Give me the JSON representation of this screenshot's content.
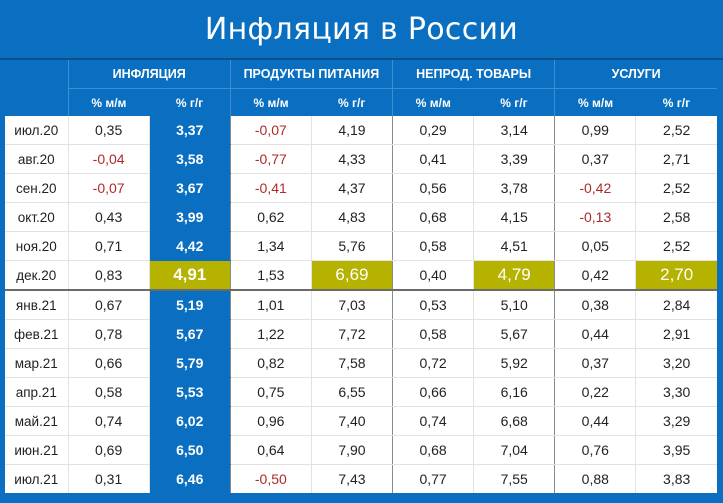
{
  "title": "Инфляция в России",
  "colors": {
    "brand_blue": "#0a6fc0",
    "highlight_olive": "#b5b300",
    "negative_red": "#b02a2a"
  },
  "groups": [
    {
      "label": "ИНФЛЯЦИЯ"
    },
    {
      "label": "ПРОДУКТЫ ПИТАНИЯ"
    },
    {
      "label": "НЕПРОД. ТОВАРЫ"
    },
    {
      "label": "УСЛУГИ"
    }
  ],
  "subheaders": [
    "% м/м",
    "% г/г",
    "% м/м",
    "% г/г",
    "% м/м",
    "% г/г",
    "% м/м",
    "% г/г"
  ],
  "rows": [
    {
      "month": "июл.20",
      "values": [
        "0,35",
        "3,37",
        "-0,07",
        "4,19",
        "0,29",
        "3,14",
        "0,99",
        "2,52"
      ]
    },
    {
      "month": "авг.20",
      "values": [
        "-0,04",
        "3,58",
        "-0,77",
        "4,33",
        "0,41",
        "3,39",
        "0,37",
        "2,71"
      ]
    },
    {
      "month": "сен.20",
      "values": [
        "-0,07",
        "3,67",
        "-0,41",
        "4,37",
        "0,56",
        "3,78",
        "-0,42",
        "2,52"
      ]
    },
    {
      "month": "окт.20",
      "values": [
        "0,43",
        "3,99",
        "0,62",
        "4,83",
        "0,68",
        "4,15",
        "-0,13",
        "2,58"
      ]
    },
    {
      "month": "ноя.20",
      "values": [
        "0,71",
        "4,42",
        "1,34",
        "5,76",
        "0,58",
        "4,51",
        "0,05",
        "2,52"
      ]
    },
    {
      "month": "дек.20",
      "values": [
        "0,83",
        "4,91",
        "1,53",
        "6,69",
        "0,40",
        "4,79",
        "0,42",
        "2,70"
      ]
    },
    {
      "month": "янв.21",
      "values": [
        "0,67",
        "5,19",
        "1,01",
        "7,03",
        "0,53",
        "5,10",
        "0,38",
        "2,84"
      ]
    },
    {
      "month": "фев.21",
      "values": [
        "0,78",
        "5,67",
        "1,22",
        "7,72",
        "0,58",
        "5,67",
        "0,44",
        "2,91"
      ]
    },
    {
      "month": "мар.21",
      "values": [
        "0,66",
        "5,79",
        "0,82",
        "7,58",
        "0,72",
        "5,92",
        "0,37",
        "3,20"
      ]
    },
    {
      "month": "апр.21",
      "values": [
        "0,58",
        "5,53",
        "0,75",
        "6,55",
        "0,66",
        "6,16",
        "0,22",
        "3,30"
      ]
    },
    {
      "month": "май.21",
      "values": [
        "0,74",
        "6,02",
        "0,96",
        "7,40",
        "0,74",
        "6,68",
        "0,44",
        "3,29"
      ]
    },
    {
      "month": "июн.21",
      "values": [
        "0,69",
        "6,50",
        "0,64",
        "7,90",
        "0,68",
        "7,04",
        "0,76",
        "3,95"
      ]
    },
    {
      "month": "июл.21",
      "values": [
        "0,31",
        "6,46",
        "-0,50",
        "7,43",
        "0,77",
        "7,55",
        "0,88",
        "3,83"
      ]
    }
  ]
}
